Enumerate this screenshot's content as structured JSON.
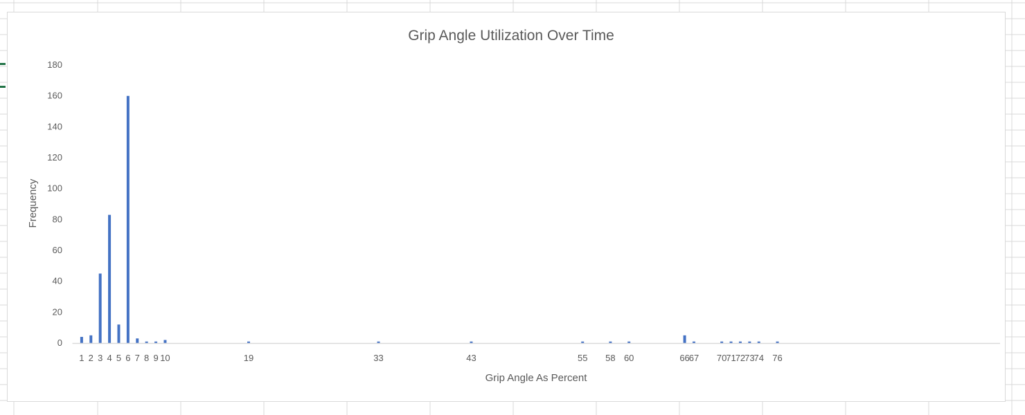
{
  "chart_data": {
    "type": "bar",
    "title": "Grip Angle Utilization Over Time",
    "xlabel": "Grip Angle As Percent",
    "ylabel": "Frequency",
    "ylim": [
      0,
      180
    ],
    "yticks": [
      0,
      20,
      40,
      60,
      80,
      100,
      120,
      140,
      160,
      180
    ],
    "xlim": [
      0,
      100
    ],
    "x": [
      1,
      2,
      3,
      4,
      5,
      6,
      7,
      8,
      9,
      10,
      19,
      33,
      43,
      55,
      58,
      60,
      66,
      67,
      70,
      71,
      72,
      73,
      74,
      76
    ],
    "values": [
      4,
      5,
      45,
      83,
      12,
      160,
      3,
      1,
      1,
      2,
      1,
      1,
      1,
      1,
      1,
      1,
      5,
      1,
      1,
      1,
      1,
      1,
      1,
      1
    ],
    "tick_labels": [
      "1",
      "2",
      "3",
      "4",
      "5",
      "6",
      "7",
      "8",
      "9",
      "10",
      "19",
      "33",
      "43",
      "55",
      "58",
      "60",
      "66",
      "67",
      "70",
      "71",
      "72",
      "73",
      "74",
      "76"
    ],
    "bar_color": "#4472c4",
    "grid": false,
    "legend": "none"
  },
  "colors": {
    "sheet_grid": "#d9d9d9",
    "axis_line": "#d9d9d9",
    "text": "#595959",
    "selection_marker": "#217346"
  }
}
